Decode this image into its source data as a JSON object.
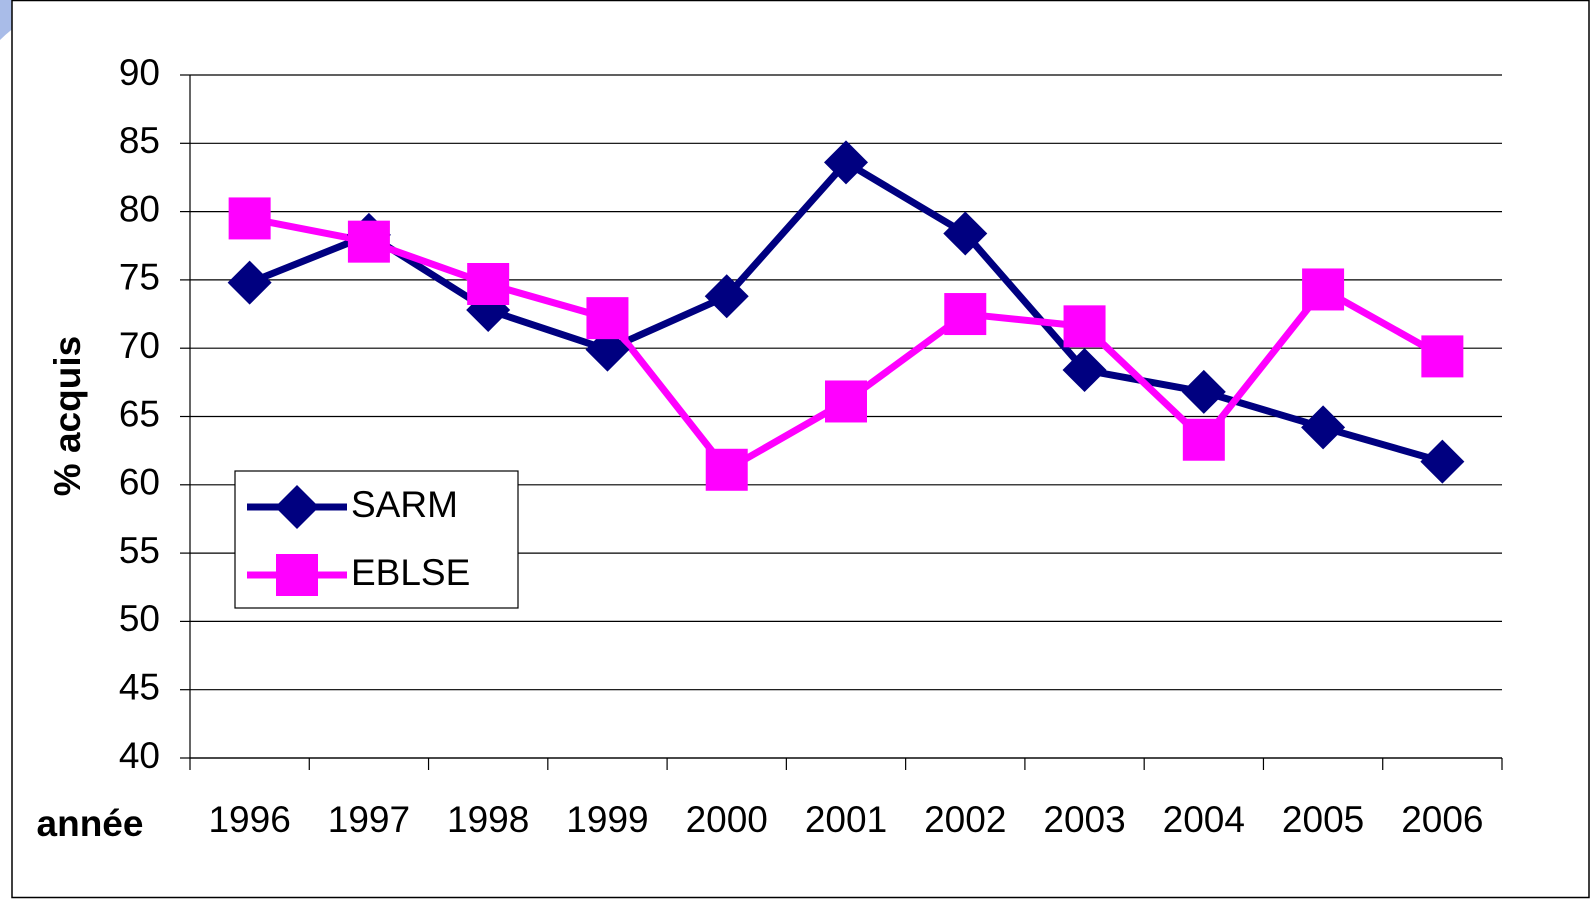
{
  "chart_data": {
    "type": "line",
    "x_label": "année",
    "y_label": "% acquis",
    "categories": [
      "1996",
      "1997",
      "1998",
      "1999",
      "2000",
      "2001",
      "2002",
      "2003",
      "2004",
      "2005",
      "2006"
    ],
    "series": [
      {
        "name": "SARM",
        "color": "#000080",
        "marker": "diamond",
        "values": [
          74.8,
          78.3,
          72.8,
          69.9,
          73.8,
          83.6,
          78.4,
          68.4,
          66.8,
          64.2,
          61.7
        ]
      },
      {
        "name": "EBLSE",
        "color": "#ff00ff",
        "marker": "square",
        "values": [
          79.5,
          77.8,
          74.7,
          72.2,
          61.1,
          66.1,
          72.5,
          71.6,
          63.3,
          74.3,
          69.4
        ]
      }
    ],
    "ylim": [
      40,
      90
    ],
    "yticks": [
      40,
      45,
      50,
      55,
      60,
      65,
      70,
      75,
      80,
      85,
      90
    ],
    "grid": true,
    "legend": "left"
  }
}
